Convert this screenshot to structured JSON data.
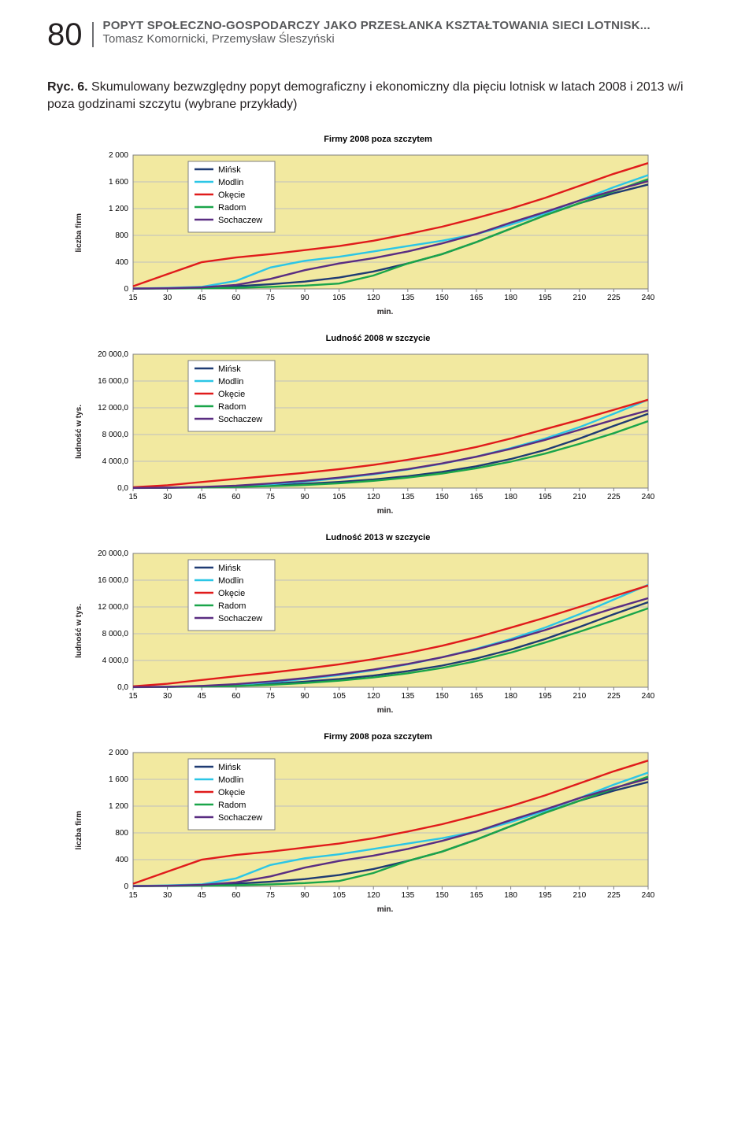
{
  "page_number": "80",
  "header_title": "POPYT SPOŁECZNO-GOSPODARCZY JAKO PRZESŁANKA KSZTAŁTOWANIA SIECI LOTNISK...",
  "header_authors": "Tomasz Komornicki, Przemysław Śleszyński",
  "caption_lead": "Ryc. 6.",
  "caption_body": " Skumulowany bezwzględny popyt demograficzny i ekonomiczny dla pięciu lotnisk w latach 2008 i 2013 w/i poza godzinami szczytu (wybrane przykłady)",
  "series": [
    {
      "label": "Mińsk",
      "color": "#1f3b73"
    },
    {
      "label": "Modlin",
      "color": "#2bc6e6"
    },
    {
      "label": "Okęcie",
      "color": "#e01b1b"
    },
    {
      "label": "Radom",
      "color": "#1aa54a"
    },
    {
      "label": "Sochaczew",
      "color": "#5a2d82"
    }
  ],
  "x_ticks": [
    15,
    30,
    45,
    60,
    75,
    90,
    105,
    120,
    135,
    150,
    165,
    180,
    195,
    210,
    225,
    240
  ],
  "x_label": "min.",
  "plot_bg": "#f2e9a0",
  "grid_color": "#bfbfbf",
  "axis_color": "#7f7f7f",
  "legend_bg": "#ffffff",
  "legend_border": "#7f7f7f",
  "charts": [
    {
      "title": "Firmy 2008 poza szczytem",
      "ylabel": "liczba firm",
      "ymin": 0,
      "ymax": 2000,
      "ystep": 400,
      "y_fmt": "int_space",
      "data": {
        "Mińsk": [
          5,
          10,
          20,
          40,
          70,
          110,
          170,
          260,
          380,
          520,
          700,
          900,
          1100,
          1280,
          1430,
          1560
        ],
        "Modlin": [
          5,
          15,
          30,
          120,
          320,
          420,
          480,
          560,
          640,
          720,
          820,
          960,
          1130,
          1320,
          1520,
          1700
        ],
        "Okęcie": [
          40,
          220,
          400,
          470,
          520,
          580,
          640,
          720,
          820,
          930,
          1060,
          1200,
          1360,
          1540,
          1720,
          1880
        ],
        "Radom": [
          2,
          5,
          10,
          18,
          30,
          50,
          80,
          200,
          380,
          520,
          700,
          900,
          1100,
          1280,
          1460,
          1640
        ],
        "Sochaczew": [
          5,
          10,
          22,
          60,
          150,
          280,
          380,
          460,
          560,
          680,
          820,
          990,
          1150,
          1320,
          1470,
          1610
        ]
      }
    },
    {
      "title": "Ludność 2008 w szczycie",
      "ylabel": "ludność w tys.",
      "ymin": 0,
      "ymax": 20000,
      "ystep": 4000,
      "y_fmt": "dec1_space",
      "data": {
        "Mińsk": [
          20,
          60,
          140,
          260,
          420,
          640,
          920,
          1280,
          1780,
          2420,
          3260,
          4340,
          5700,
          7400,
          9300,
          11100
        ],
        "Modlin": [
          20,
          50,
          120,
          280,
          560,
          960,
          1460,
          2060,
          2780,
          3640,
          4700,
          5960,
          7400,
          9100,
          11100,
          13200
        ],
        "Okęcie": [
          120,
          420,
          900,
          1380,
          1820,
          2280,
          2820,
          3460,
          4220,
          5100,
          6140,
          7400,
          8800,
          10200,
          11700,
          13200
        ],
        "Radom": [
          10,
          30,
          80,
          160,
          280,
          460,
          720,
          1080,
          1560,
          2180,
          2960,
          3940,
          5150,
          6600,
          8200,
          10000
        ],
        "Sochaczew": [
          20,
          60,
          160,
          360,
          680,
          1080,
          1560,
          2140,
          2840,
          3680,
          4680,
          5860,
          7200,
          8700,
          10200,
          11600
        ]
      }
    },
    {
      "title": "Ludność 2013 w szczycie",
      "ylabel": "ludność w tys.",
      "ymin": 0,
      "ymax": 20000,
      "ystep": 4000,
      "y_fmt": "dec1_space",
      "data": {
        "Mińsk": [
          20,
          60,
          150,
          300,
          520,
          820,
          1220,
          1740,
          2400,
          3240,
          4300,
          5620,
          7200,
          9000,
          10900,
          12700
        ],
        "Modlin": [
          20,
          60,
          160,
          380,
          740,
          1220,
          1820,
          2540,
          3420,
          4480,
          5740,
          7200,
          8900,
          10900,
          13100,
          15300
        ],
        "Okęcie": [
          140,
          520,
          1080,
          1640,
          2180,
          2760,
          3420,
          4200,
          5120,
          6200,
          7460,
          8900,
          10400,
          12000,
          13600,
          15200
        ],
        "Radom": [
          10,
          30,
          90,
          190,
          360,
          620,
          980,
          1460,
          2080,
          2880,
          3900,
          5160,
          6680,
          8300,
          10000,
          11800
        ],
        "Sochaczew": [
          20,
          70,
          200,
          460,
          860,
          1360,
          1940,
          2640,
          3480,
          4480,
          5660,
          7020,
          8540,
          10200,
          11800,
          13300
        ]
      }
    },
    {
      "title": "Firmy 2008 poza szczytem",
      "ylabel": "liczba firm",
      "ymin": 0,
      "ymax": 2000,
      "ystep": 400,
      "y_fmt": "int_space",
      "data": {
        "Mińsk": [
          5,
          10,
          20,
          40,
          70,
          110,
          170,
          260,
          380,
          520,
          700,
          900,
          1100,
          1280,
          1430,
          1560
        ],
        "Modlin": [
          5,
          15,
          30,
          120,
          320,
          420,
          480,
          560,
          640,
          720,
          820,
          960,
          1130,
          1320,
          1520,
          1700
        ],
        "Okęcie": [
          40,
          220,
          400,
          470,
          520,
          580,
          640,
          720,
          820,
          930,
          1060,
          1200,
          1360,
          1540,
          1720,
          1880
        ],
        "Radom": [
          2,
          5,
          10,
          18,
          30,
          50,
          80,
          200,
          380,
          520,
          700,
          900,
          1100,
          1280,
          1460,
          1640
        ],
        "Sochaczew": [
          5,
          10,
          22,
          60,
          150,
          280,
          380,
          460,
          560,
          680,
          820,
          990,
          1150,
          1320,
          1470,
          1610
        ]
      }
    }
  ]
}
